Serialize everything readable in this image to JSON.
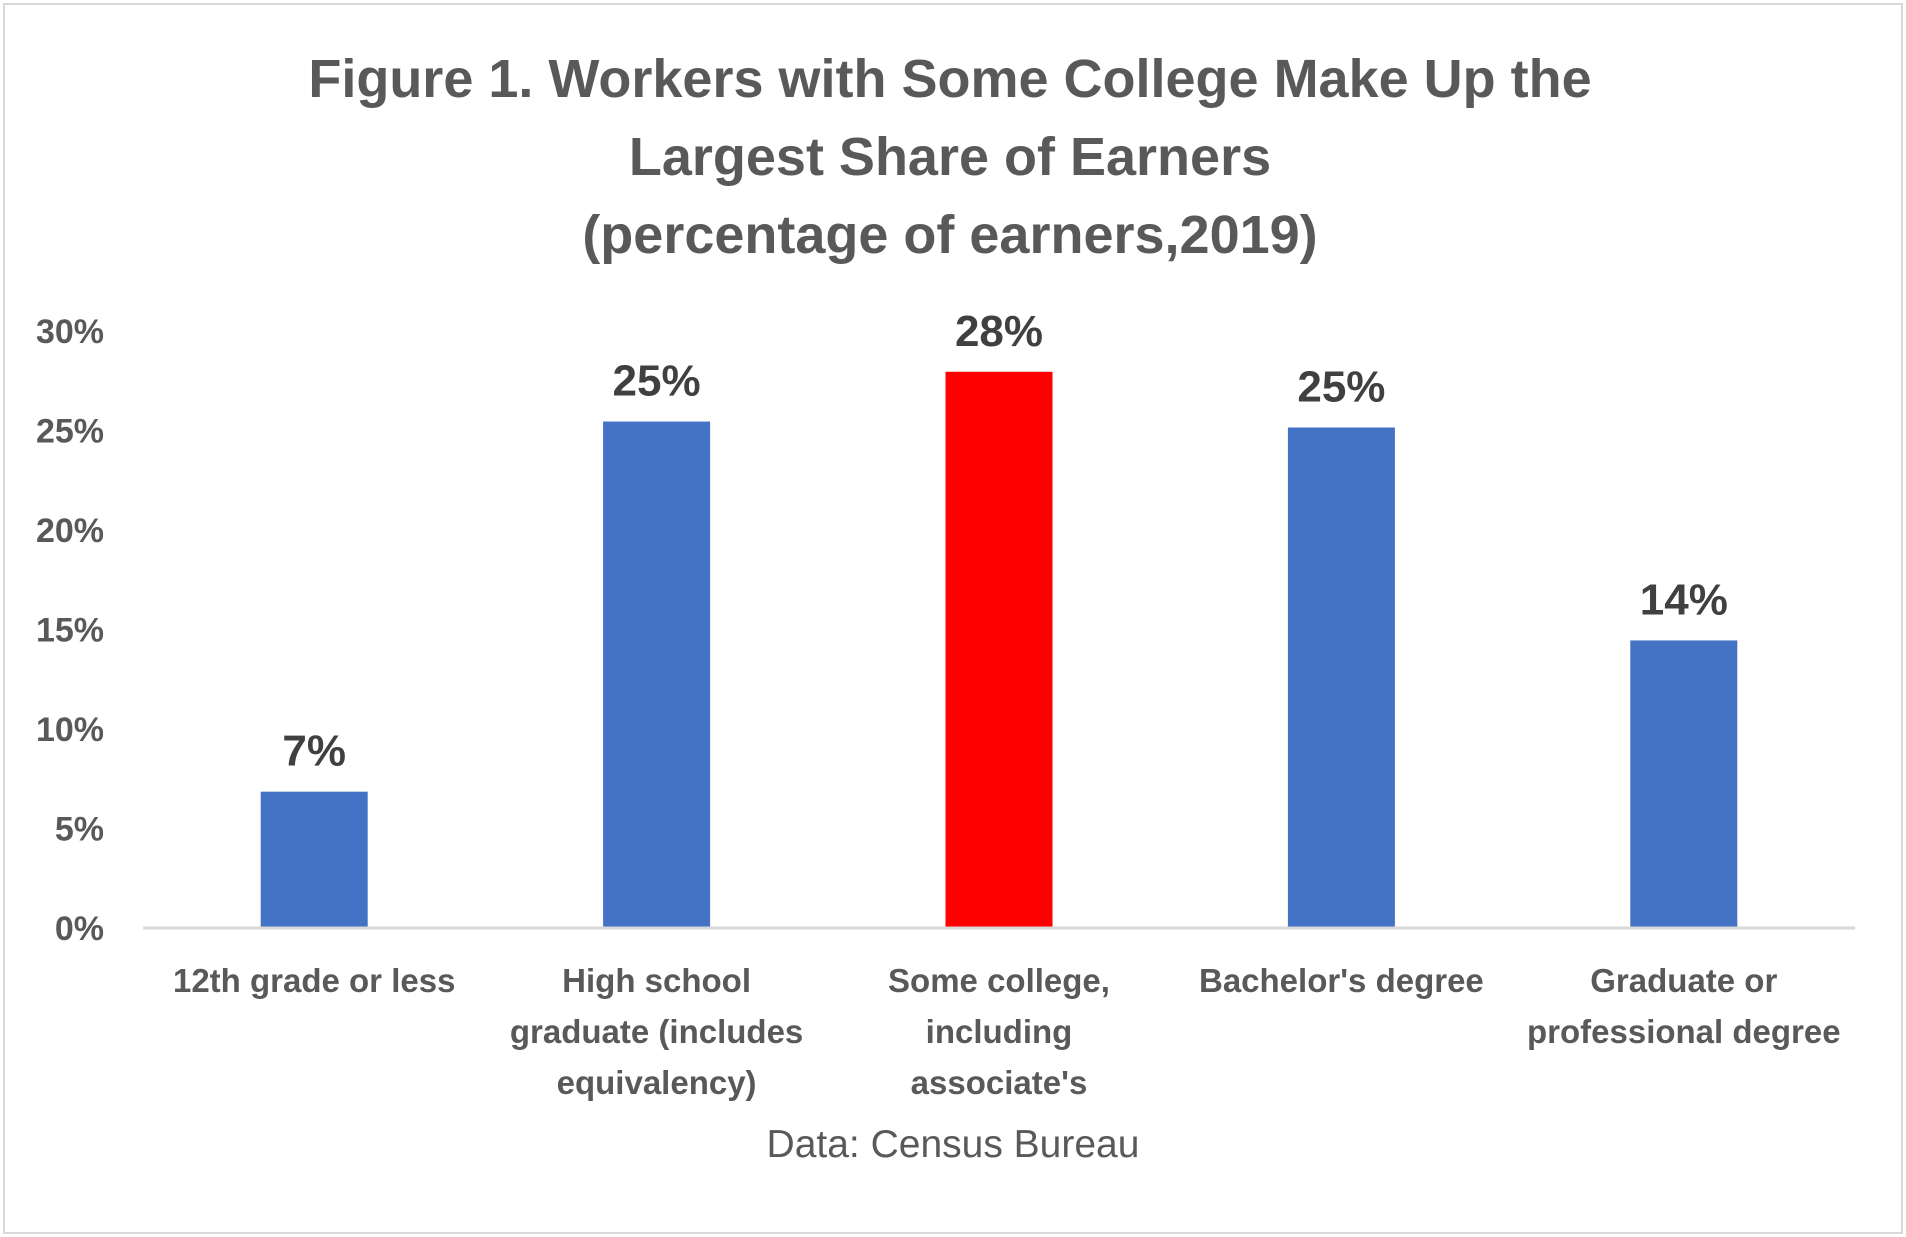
{
  "chart_data": {
    "type": "bar",
    "title_lines": [
      "Figure 1. Workers with Some College Make Up the",
      "Largest Share of Earners",
      "(percentage of earners,2019)"
    ],
    "categories": [
      [
        "12th grade or less"
      ],
      [
        "High school",
        "graduate (includes",
        "equivalency)"
      ],
      [
        "Some college,",
        "including",
        "associate's"
      ],
      [
        "Bachelor's degree"
      ],
      [
        "Graduate or",
        "professional degree"
      ]
    ],
    "values": [
      6.8,
      25.4,
      27.9,
      25.1,
      14.4
    ],
    "data_labels": [
      "7%",
      "25%",
      "28%",
      "25%",
      "14%"
    ],
    "bar_colors": [
      "#4472c4",
      "#4472c4",
      "#ff0000",
      "#4472c4",
      "#4472c4"
    ],
    "y_ticks": [
      "0%",
      "5%",
      "10%",
      "15%",
      "20%",
      "25%",
      "30%"
    ],
    "y_tick_values": [
      0,
      5,
      10,
      15,
      20,
      25,
      30
    ],
    "ylim": [
      0,
      30
    ],
    "grid": false,
    "source_note": "Data: Census Bureau",
    "colors": {
      "text": "#595959",
      "data_label": "#404040",
      "axis": "#d9d9d9"
    }
  }
}
